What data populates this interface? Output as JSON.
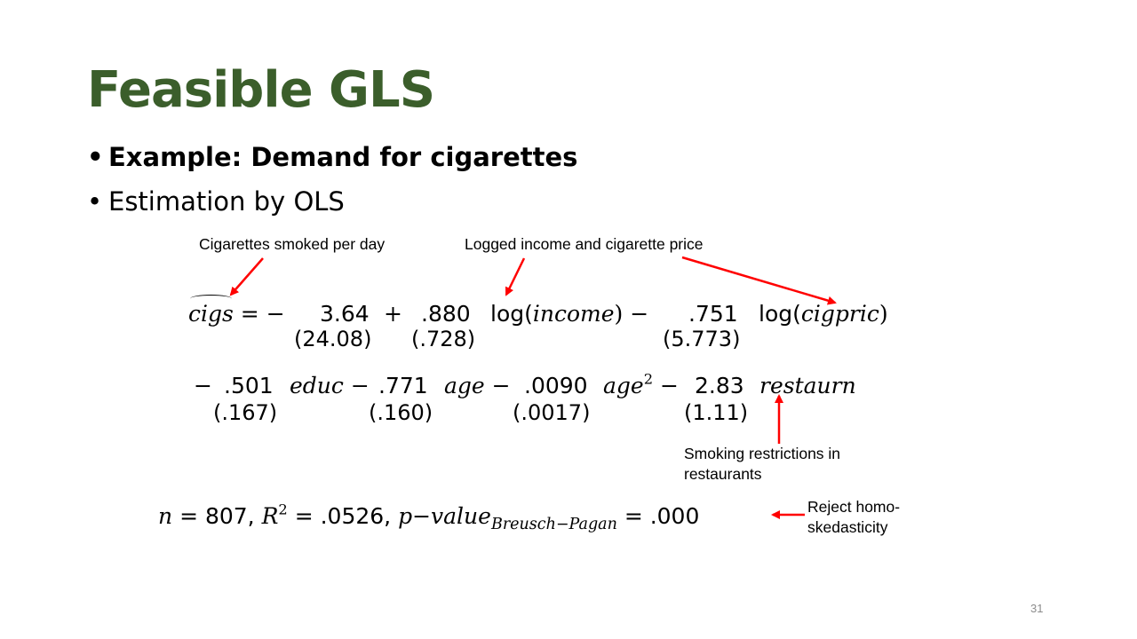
{
  "slide": {
    "title": "Feasible GLS",
    "bullets": [
      {
        "text": "Example: Demand for cigarettes",
        "bold": true
      },
      {
        "text": "Estimation by OLS",
        "bold": false
      }
    ],
    "annotations": {
      "cigs": "Cigarettes smoked per day",
      "logs": "Logged income and cigarette price",
      "restaurn_line1": "Smoking restrictions in",
      "restaurn_line2": "restaurants",
      "bp_line1": "Reject homo-",
      "bp_line2": "skedasticity"
    },
    "equation": {
      "lhs": "cigs",
      "eq_sign": "= −",
      "const": "3.64",
      "plus": "+",
      "coef_income": ".880",
      "log1": "log(",
      "var_income": "income",
      "close1": ") −",
      "coef_price": ".751",
      "log2": "log(",
      "var_price": "cigpric",
      "close2": ")",
      "se_const": "(24.08)",
      "se_income": "(.728)",
      "se_price": "(5.773)",
      "minus1": "−",
      "coef_educ": ".501",
      "var_educ": "educ",
      "minus2": "−",
      "coef_age": ".771",
      "var_age": "age",
      "minus3": "−",
      "coef_age2": ".0090",
      "var_age2": "age",
      "age2_exp": "2",
      "minus4": "−",
      "coef_restaurn": "2.83",
      "var_restaurn": "restaurn",
      "se_educ": "(.167)",
      "se_age": "(.160)",
      "se_age2": "(.0017)",
      "se_restaurn": "(1.11)"
    },
    "stats": {
      "n_label": "n",
      "n_value": "= 807,",
      "r2_label": "R",
      "r2_exp": "2",
      "r2_value": "= .0526,",
      "pvalue_label": "p−value",
      "pvalue_sub": "Breusch−Pagan",
      "pvalue_value": "= .000"
    },
    "page_number": "31",
    "colors": {
      "title": "#3b5e2b",
      "arrow": "#ff0000"
    }
  }
}
